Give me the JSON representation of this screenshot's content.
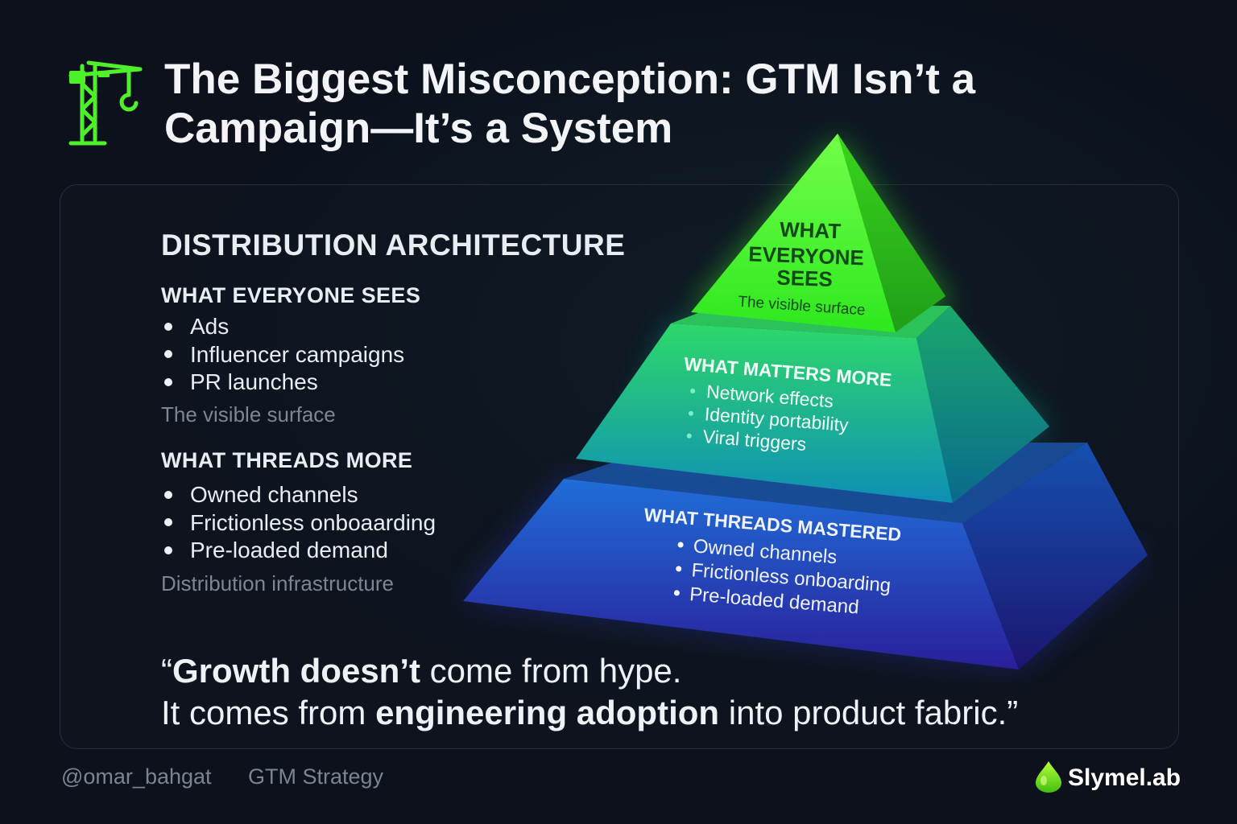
{
  "header": {
    "title_line1": "The Biggest Misconception: GTM Isn’t a",
    "title_line2": "Campaign—It’s a System",
    "icon": "crane-icon"
  },
  "architecture": {
    "heading": "DISTRIBUTION ARCHITECTURE",
    "sections": [
      {
        "heading": "WHAT EVERYONE SEES",
        "items": [
          "Ads",
          "Influencer campaigns",
          "PR launches"
        ],
        "caption": "The visible surface"
      },
      {
        "heading": "WHAT THREADS MORE",
        "items": [
          "Owned channels",
          "Frictionless onboaarding",
          "Pre-loaded demand"
        ],
        "caption": "Distribution infrastructure"
      }
    ]
  },
  "pyramid": {
    "top": {
      "title_lines": [
        "WHAT",
        "EVERYONE",
        "SEES"
      ],
      "caption": "The visible surface",
      "color": "#3ff82e"
    },
    "middle": {
      "title": "WHAT MATTERS MORE",
      "items": [
        "Network effects",
        "Identity portability",
        "Viral triggers"
      ],
      "color": "#16b8a0"
    },
    "bottom": {
      "title": "WHAT THREADS MASTERED",
      "items": [
        "Owned channels",
        "Frictionless onboarding",
        "Pre-loaded demand"
      ],
      "color": "#2a3fc8"
    }
  },
  "quote": {
    "line1_open": "“",
    "line1_bold": "Growth doesn’t",
    "line1_rest": " come from hype.",
    "line2_pre": "It comes from ",
    "line2_bold": "engineering adoption",
    "line2_rest": " into product fabric.”"
  },
  "footer": {
    "handle": "@omar_bahgat",
    "tag": "GTM Strategy",
    "brand": "Slymel.ab",
    "brand_icon": "drop-logo-icon"
  },
  "colors": {
    "background": "#0c111c",
    "accent_green": "#4ef02a",
    "muted_text": "#7e8594"
  }
}
